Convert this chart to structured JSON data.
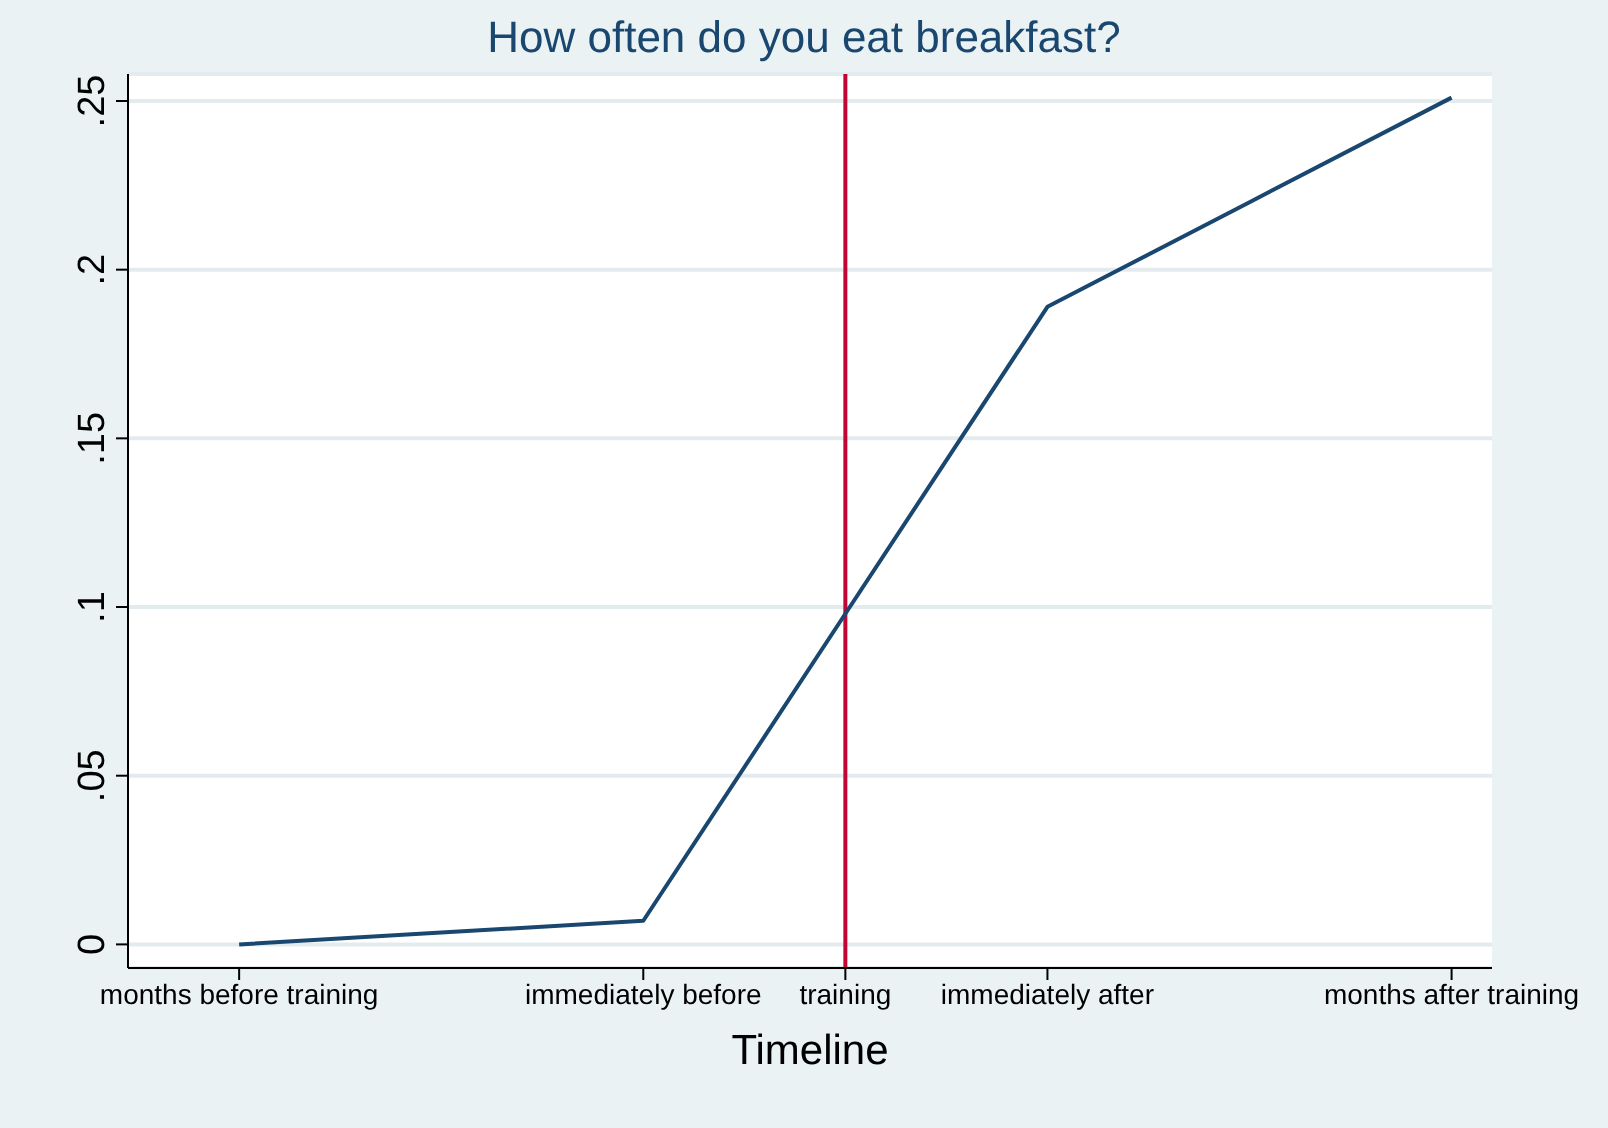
{
  "chart_data": {
    "type": "line",
    "title": "How often do you eat breakfast?",
    "xlabel": "Timeline",
    "categories": [
      "months before training",
      null,
      "immediately before",
      "training",
      "immediately after",
      null,
      "months after training"
    ],
    "series": [
      {
        "color": "#1a476f",
        "values": [
          0,
          0.0035,
          0.007,
          0.098,
          0.189,
          0.22,
          0.251
        ]
      }
    ],
    "ylim": [
      -0.007,
      0.258
    ],
    "yticks": [
      {
        "value": 0,
        "label": "0"
      },
      {
        "value": 0.05,
        "label": ".05"
      },
      {
        "value": 0.1,
        "label": ".1"
      },
      {
        "value": 0.15,
        "label": ".15"
      },
      {
        "value": 0.2,
        "label": ".2"
      },
      {
        "value": 0.25,
        "label": ".25"
      }
    ],
    "ref_lines": [
      {
        "axis": "x",
        "value": "training",
        "color": "#c10534"
      }
    ],
    "grid": "y",
    "marker": "none",
    "line_style": "solid"
  }
}
